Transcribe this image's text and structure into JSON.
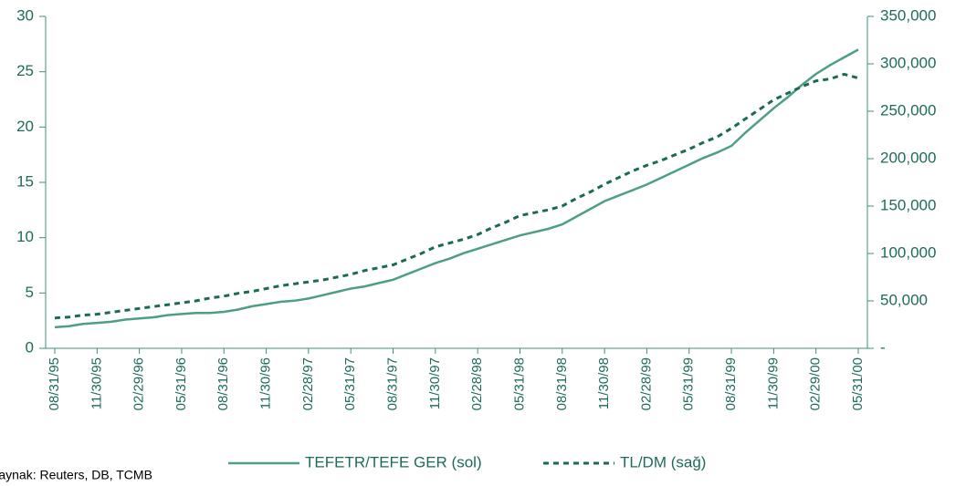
{
  "chart_data": {
    "type": "line",
    "categories": [
      "08/31/95",
      null,
      null,
      "11/30/95",
      null,
      null,
      "02/29/96",
      null,
      null,
      "05/31/96",
      null,
      null,
      "08/31/96",
      null,
      null,
      "11/30/96",
      null,
      null,
      "02/28/97",
      null,
      null,
      "05/31/97",
      null,
      null,
      "08/31/97",
      null,
      null,
      "11/30/97",
      null,
      null,
      "02/28/98",
      null,
      null,
      "05/31/98",
      null,
      null,
      "08/31/98",
      null,
      null,
      "11/30/98",
      null,
      null,
      "02/28/99",
      null,
      null,
      "05/31/99",
      null,
      null,
      "08/31/99",
      null,
      null,
      "11/30/99",
      null,
      null,
      "02/29/00",
      null,
      null,
      "05/31/00"
    ],
    "series": [
      {
        "name": "TEFETR/TEFE GER (sol)",
        "color": "#4e9e87",
        "dash": false,
        "values": [
          1.9,
          2.0,
          2.2,
          2.3,
          2.4,
          2.6,
          2.7,
          2.8,
          3.0,
          3.1,
          3.2,
          3.2,
          3.3,
          3.5,
          3.8,
          4.0,
          4.2,
          4.3,
          4.5,
          4.8,
          5.1,
          5.4,
          5.6,
          5.9,
          6.2,
          6.7,
          7.2,
          7.7,
          8.1,
          8.6,
          9.0,
          9.4,
          9.8,
          10.2,
          10.5,
          10.8,
          11.2,
          11.9,
          12.6,
          13.3,
          13.8,
          14.3,
          14.8,
          15.4,
          16.0,
          16.6,
          17.2,
          17.7,
          18.3,
          19.5,
          20.6,
          21.7,
          22.7,
          23.8,
          24.8,
          25.6,
          26.3,
          27.0
        ]
      },
      {
        "name": "TL/DM (sağ)",
        "color": "#1b6a52",
        "dash": true,
        "axis": "y2",
        "values": [
          32000,
          33000,
          35000,
          36000,
          38000,
          40000,
          42000,
          44000,
          46000,
          48000,
          50000,
          53000,
          55000,
          58000,
          60000,
          63000,
          66000,
          68000,
          70000,
          72000,
          75000,
          78000,
          82000,
          85000,
          88000,
          94000,
          100000,
          107000,
          111000,
          115000,
          120000,
          127000,
          133000,
          140000,
          143000,
          146000,
          150000,
          158000,
          165000,
          173000,
          180000,
          187000,
          193000,
          198000,
          204000,
          210000,
          217000,
          223000,
          232000,
          242000,
          252000,
          262000,
          269000,
          276000,
          282000,
          284000,
          289000,
          285000
        ]
      }
    ],
    "ylim": [
      0,
      30
    ],
    "yticks": [
      0,
      5,
      10,
      15,
      20,
      25,
      30
    ],
    "y2lim": [
      0,
      350000
    ],
    "y2ticks": [
      {
        "value": 0,
        "label": "-"
      },
      {
        "value": 50000,
        "label": "50,000"
      },
      {
        "value": 100000,
        "label": "100,000"
      },
      {
        "value": 150000,
        "label": "150,000"
      },
      {
        "value": 200000,
        "label": "200,000"
      },
      {
        "value": 250000,
        "label": "250,000"
      },
      {
        "value": 300000,
        "label": "300,000"
      },
      {
        "value": 350000,
        "label": "350,000"
      }
    ],
    "legend": "bottom",
    "source": "Kaynak: Reuters, DB, TCMB"
  }
}
